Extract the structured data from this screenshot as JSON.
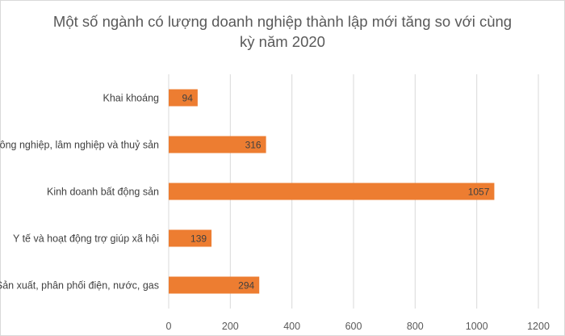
{
  "chart_data": {
    "type": "bar",
    "orientation": "horizontal",
    "title_lines": [
      "Một số ngành có lượng doanh nghiệp thành lập mới tăng so với cùng",
      "kỳ năm 2020"
    ],
    "categories": [
      "Khai khoáng",
      "Nông nghiệp, lâm nghiệp và thuỷ sản",
      "Kinh doanh bất động sản",
      "Y tế và hoạt động trợ giúp xã hội",
      "Sản xuất, phân phối điện, nước, gas"
    ],
    "values": [
      94,
      316,
      1057,
      139,
      294
    ],
    "xlim": [
      0,
      1200
    ],
    "xticks": [
      0,
      200,
      400,
      600,
      800,
      1000,
      1200
    ],
    "xlabel": "",
    "ylabel": "",
    "grid": "vertical",
    "legend": "none",
    "data_labels": true,
    "colors": {
      "bar": "#ed7d31",
      "grid": "#d9d9d9",
      "title": "#595959"
    }
  }
}
